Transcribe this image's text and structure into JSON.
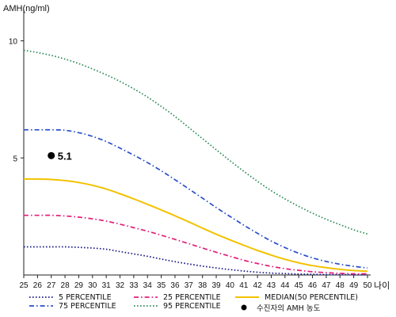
{
  "chart_data": {
    "type": "line",
    "ylabel": "AMH(ng/ml)",
    "xlabel": "나이",
    "xlim": [
      25,
      50
    ],
    "ylim": [
      0,
      11
    ],
    "yticks": [
      5,
      10
    ],
    "xticks": [
      25,
      26,
      27,
      28,
      29,
      30,
      31,
      32,
      33,
      34,
      35,
      36,
      37,
      38,
      39,
      40,
      41,
      42,
      43,
      44,
      45,
      46,
      47,
      48,
      49,
      50
    ],
    "grid": false,
    "legend_position": "bottom",
    "series": [
      {
        "name": "5 PERCENTILE",
        "color": "#1a1a8a",
        "dash": "dot",
        "x": [
          25,
          26,
          27,
          28,
          29,
          30,
          31,
          32,
          33,
          34,
          35,
          36,
          37,
          38,
          39,
          40,
          41,
          42,
          43,
          44,
          45,
          46,
          47,
          48,
          49,
          50
        ],
        "values": [
          1.2,
          1.2,
          1.2,
          1.2,
          1.18,
          1.15,
          1.1,
          1.0,
          0.9,
          0.8,
          0.68,
          0.57,
          0.47,
          0.38,
          0.3,
          0.23,
          0.17,
          0.12,
          0.08,
          0.06,
          0.04,
          0.03,
          0.02,
          0.02,
          0.01,
          0.01
        ]
      },
      {
        "name": "25 PERCENTILE",
        "color": "#e0207a",
        "dash": "dashdot",
        "x": [
          25,
          26,
          27,
          28,
          29,
          30,
          31,
          32,
          33,
          34,
          35,
          36,
          37,
          38,
          39,
          40,
          41,
          42,
          43,
          44,
          45,
          46,
          47,
          48,
          49,
          50
        ],
        "values": [
          2.55,
          2.55,
          2.55,
          2.52,
          2.47,
          2.4,
          2.3,
          2.17,
          2.02,
          1.87,
          1.7,
          1.52,
          1.34,
          1.15,
          0.97,
          0.8,
          0.63,
          0.49,
          0.37,
          0.27,
          0.2,
          0.14,
          0.1,
          0.07,
          0.05,
          0.05
        ]
      },
      {
        "name": "MEDIAN(50 PERCENTILE)",
        "color": "#f2c200",
        "dash": "solid",
        "x": [
          25,
          26,
          27,
          28,
          29,
          30,
          31,
          32,
          33,
          34,
          35,
          36,
          37,
          38,
          39,
          40,
          41,
          42,
          43,
          44,
          45,
          46,
          47,
          48,
          49,
          50
        ],
        "values": [
          4.1,
          4.1,
          4.08,
          4.03,
          3.95,
          3.83,
          3.67,
          3.47,
          3.25,
          3.02,
          2.78,
          2.53,
          2.27,
          2.0,
          1.74,
          1.5,
          1.27,
          1.05,
          0.85,
          0.67,
          0.52,
          0.4,
          0.31,
          0.24,
          0.19,
          0.16
        ]
      },
      {
        "name": "75 PERCENTILE",
        "color": "#2a4fc8",
        "dash": "dashdot",
        "x": [
          25,
          26,
          27,
          28,
          29,
          30,
          31,
          32,
          33,
          34,
          35,
          36,
          37,
          38,
          39,
          40,
          41,
          42,
          43,
          44,
          45,
          46,
          47,
          48,
          49,
          50
        ],
        "values": [
          6.2,
          6.2,
          6.2,
          6.18,
          6.08,
          5.92,
          5.7,
          5.42,
          5.12,
          4.8,
          4.45,
          4.07,
          3.68,
          3.28,
          2.88,
          2.5,
          2.13,
          1.78,
          1.45,
          1.17,
          0.93,
          0.73,
          0.58,
          0.46,
          0.37,
          0.3
        ]
      },
      {
        "name": "95 PERCENTILE",
        "color": "#2e8b57",
        "dash": "dot",
        "x": [
          25,
          26,
          27,
          28,
          29,
          30,
          31,
          32,
          33,
          34,
          35,
          36,
          37,
          38,
          39,
          40,
          41,
          42,
          43,
          44,
          45,
          46,
          47,
          48,
          49,
          50
        ],
        "values": [
          9.6,
          9.5,
          9.38,
          9.22,
          9.03,
          8.8,
          8.55,
          8.27,
          7.95,
          7.6,
          7.2,
          6.77,
          6.3,
          5.82,
          5.35,
          4.88,
          4.43,
          4.0,
          3.6,
          3.25,
          2.93,
          2.64,
          2.38,
          2.15,
          1.93,
          1.75
        ]
      }
    ],
    "patient_point": {
      "name": "수진자의 AMH 농도",
      "x": 27,
      "y": 5.1,
      "label": "5.1",
      "color": "#000000"
    }
  }
}
